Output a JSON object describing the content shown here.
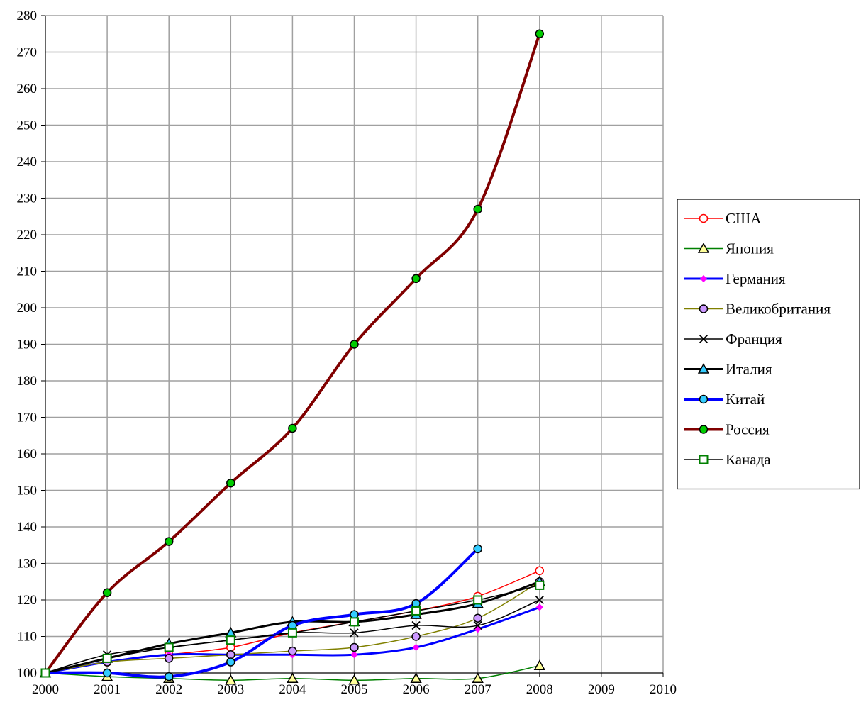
{
  "chart_data": {
    "type": "line",
    "title": "",
    "xlabel": "",
    "ylabel": "",
    "xlim": [
      2000,
      2010
    ],
    "ylim": [
      100,
      280
    ],
    "x_ticks": [
      2000,
      2001,
      2002,
      2003,
      2004,
      2005,
      2006,
      2007,
      2008,
      2009,
      2010
    ],
    "y_ticks": [
      100,
      110,
      120,
      130,
      140,
      150,
      160,
      170,
      180,
      190,
      200,
      210,
      220,
      230,
      240,
      250,
      260,
      270,
      280
    ],
    "grid": true,
    "legend_position": "right",
    "series": [
      {
        "name": "США",
        "color": "#ff0000",
        "stroke_width": 1.5,
        "marker": "circle",
        "marker_fill": "#ffffff",
        "marker_stroke": "#ff0000",
        "x": [
          2000,
          2001,
          2002,
          2003,
          2004,
          2005,
          2006,
          2007,
          2008
        ],
        "values": [
          100,
          103,
          105,
          107,
          111,
          114,
          117,
          121,
          128
        ]
      },
      {
        "name": "Япония",
        "color": "#008000",
        "stroke_width": 1.5,
        "marker": "triangle",
        "marker_fill": "#ffff99",
        "marker_stroke": "#000000",
        "x": [
          2000,
          2001,
          2002,
          2003,
          2004,
          2005,
          2006,
          2007,
          2008
        ],
        "values": [
          100,
          99,
          98.5,
          98,
          98.5,
          98,
          98.5,
          98.5,
          102
        ]
      },
      {
        "name": "Германия",
        "color": "#0000ff",
        "stroke_width": 3,
        "marker": "diamond",
        "marker_fill": "#ff00ff",
        "marker_stroke": "#ff00ff",
        "x": [
          2000,
          2001,
          2002,
          2003,
          2004,
          2005,
          2006,
          2007,
          2008
        ],
        "values": [
          100,
          103,
          105,
          105,
          105,
          105,
          107,
          112,
          118
        ]
      },
      {
        "name": "Великобритания",
        "color": "#808000",
        "stroke_width": 1.5,
        "marker": "circle",
        "marker_fill": "#cc99ff",
        "marker_stroke": "#000000",
        "x": [
          2000,
          2001,
          2002,
          2003,
          2004,
          2005,
          2006,
          2007,
          2008
        ],
        "values": [
          100,
          103,
          104,
          105,
          106,
          107,
          110,
          115,
          125
        ]
      },
      {
        "name": "Франция",
        "color": "#000000",
        "stroke_width": 1.5,
        "marker": "x",
        "marker_fill": "none",
        "marker_stroke": "#000000",
        "x": [
          2000,
          2001,
          2002,
          2003,
          2004,
          2005,
          2006,
          2007,
          2008
        ],
        "values": [
          100,
          105,
          107,
          109,
          111,
          111,
          113,
          113,
          120
        ]
      },
      {
        "name": "Италия",
        "color": "#000000",
        "stroke_width": 3,
        "marker": "triangle",
        "marker_fill": "#33ccff",
        "marker_stroke": "#000000",
        "x": [
          2000,
          2001,
          2002,
          2003,
          2004,
          2005,
          2006,
          2007,
          2008
        ],
        "values": [
          100,
          104,
          108,
          111,
          114,
          114,
          116,
          119,
          125
        ]
      },
      {
        "name": "Китай",
        "color": "#0000ff",
        "stroke_width": 4,
        "marker": "circle",
        "marker_fill": "#33ccff",
        "marker_stroke": "#000000",
        "x": [
          2000,
          2001,
          2002,
          2003,
          2004,
          2005,
          2006,
          2007
        ],
        "values": [
          100,
          100,
          99,
          103,
          113,
          116,
          119,
          134
        ]
      },
      {
        "name": "Россия",
        "color": "#800000",
        "stroke_width": 4,
        "marker": "circle",
        "marker_fill": "#00cc00",
        "marker_stroke": "#000000",
        "x": [
          2000,
          2001,
          2002,
          2003,
          2004,
          2005,
          2006,
          2007,
          2008
        ],
        "values": [
          100,
          122,
          136,
          152,
          167,
          190,
          208,
          227,
          275
        ]
      },
      {
        "name": "Канада",
        "color": "#000000",
        "stroke_width": 1.5,
        "marker": "square",
        "marker_fill": "#ffffff",
        "marker_stroke": "#008000",
        "x": [
          2000,
          2001,
          2002,
          2003,
          2004,
          2005,
          2006,
          2007,
          2008
        ],
        "values": [
          100,
          104,
          107,
          109,
          111,
          114,
          117,
          120,
          124
        ]
      }
    ]
  }
}
